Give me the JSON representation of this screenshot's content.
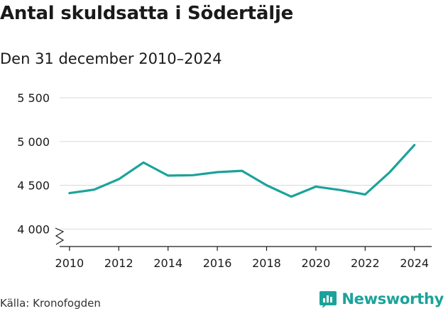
{
  "title": "Antal skuldsatta i Södertälje",
  "subtitle": "Den 31 december 2010–2024",
  "source": "Källa: Kronofogden",
  "brand": {
    "name": "Newsworthy",
    "icon": "newsworthy-logo-icon",
    "color": "#1aa39a"
  },
  "colors": {
    "line": "#1aa39a",
    "grid": "#d9d9d9",
    "axis": "#1a1a1a"
  },
  "chart_data": {
    "type": "line",
    "title": "Antal skuldsatta i Södertälje",
    "subtitle": "Den 31 december 2010–2024",
    "xlabel": "",
    "ylabel": "",
    "x": [
      2010,
      2011,
      2012,
      2013,
      2014,
      2015,
      2016,
      2017,
      2018,
      2019,
      2020,
      2021,
      2022,
      2023,
      2024
    ],
    "series": [
      {
        "name": "Antal skuldsatta",
        "values": [
          4410,
          4450,
          4570,
          4760,
          4610,
          4615,
          4650,
          4665,
          4500,
          4370,
          4485,
          4445,
          4395,
          4650,
          4960
        ]
      }
    ],
    "ylim": [
      3800,
      5500
    ],
    "yticks": [
      4000,
      4500,
      5000,
      5500
    ],
    "ytick_labels": [
      "4 000",
      "4 500",
      "5 000",
      "5 500"
    ],
    "xticks": [
      2010,
      2012,
      2014,
      2016,
      2018,
      2020,
      2022,
      2024
    ],
    "xtick_labels": [
      "2010",
      "2012",
      "2014",
      "2016",
      "2018",
      "2020",
      "2022",
      "2024"
    ],
    "xlim": [
      2009.6,
      2024.7
    ],
    "axis_break": true,
    "grid": true,
    "legend": "none"
  }
}
